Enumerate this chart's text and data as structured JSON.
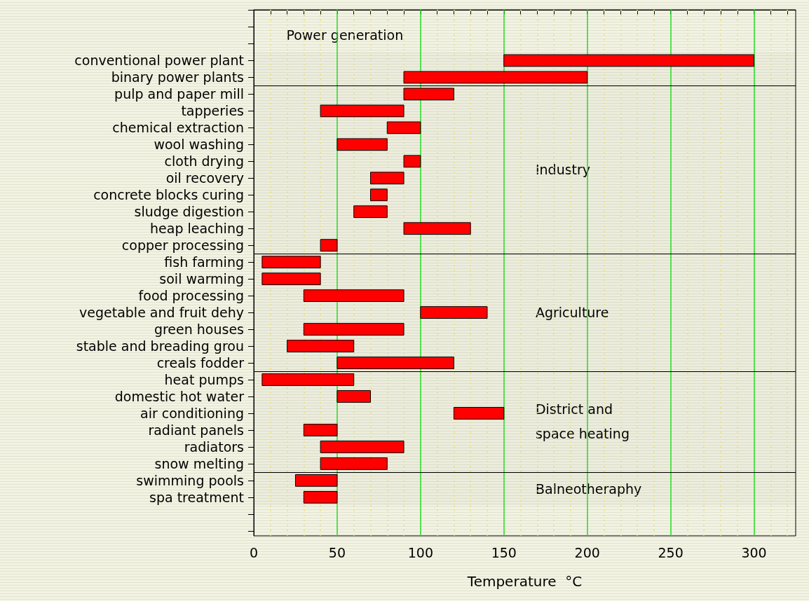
{
  "chart_data": {
    "type": "bar",
    "orientation": "horizontal",
    "xlabel": "Temperature  °C",
    "categories": [
      null,
      null,
      null,
      "conventional power plant",
      "binary power plants",
      "pulp and paper mill",
      "tapperies",
      "chemical extraction",
      "wool washing",
      "cloth drying",
      "oil recovery",
      "concrete blocks curing",
      "sludge digestion",
      "heap leaching",
      "copper processing",
      "fish farming",
      "soil warming",
      "food processing",
      "vegetable and fruit dehy",
      "green houses",
      "stable and breading grou",
      "creals fodder",
      "heat pumps",
      "domestic hot water",
      "air conditioning",
      "radiant panels",
      "radiators",
      "snow melting",
      "swimming pools",
      "spa treatment",
      null,
      null
    ],
    "base": [
      null,
      null,
      null,
      150,
      90,
      90,
      40,
      80,
      50,
      90,
      70,
      70,
      60,
      90,
      40,
      5,
      5,
      30,
      100,
      30,
      20,
      50,
      5,
      50,
      120,
      30,
      40,
      40,
      25,
      30,
      null,
      null
    ],
    "values": [
      null,
      null,
      null,
      150,
      110,
      30,
      50,
      20,
      30,
      10,
      20,
      10,
      20,
      40,
      10,
      35,
      35,
      60,
      40,
      60,
      40,
      70,
      55,
      20,
      30,
      20,
      50,
      40,
      25,
      20,
      null,
      null
    ],
    "color": "#ff0000",
    "xlim": [
      0,
      325
    ],
    "xticks": [
      0,
      {
        "value": 10,
        "label": null
      },
      {
        "value": 20,
        "label": null
      },
      {
        "value": 30,
        "label": null
      },
      {
        "value": 40,
        "label": null
      },
      50,
      {
        "value": 60,
        "label": null
      },
      {
        "value": 70,
        "label": null
      },
      {
        "value": 80,
        "label": null
      },
      {
        "value": 90,
        "label": null
      },
      100,
      {
        "value": 110,
        "label": null
      },
      {
        "value": 120,
        "label": null
      },
      {
        "value": 130,
        "label": null
      },
      {
        "value": 140,
        "label": null
      },
      150,
      {
        "value": 160,
        "label": null
      },
      {
        "value": 170,
        "label": null
      },
      {
        "value": 180,
        "label": null
      },
      {
        "value": 190,
        "label": null
      },
      200,
      {
        "value": 210,
        "label": null
      },
      {
        "value": 220,
        "label": null
      },
      {
        "value": 230,
        "label": null
      },
      {
        "value": 240,
        "label": null
      },
      250,
      {
        "value": 260,
        "label": null
      },
      {
        "value": 270,
        "label": null
      },
      {
        "value": 280,
        "label": null
      },
      {
        "value": 290,
        "label": null
      },
      300,
      {
        "value": 310,
        "label": null
      },
      {
        "value": 320,
        "label": null
      }
    ],
    "grid": "x",
    "bands": [
      {
        "axis": "y",
        "from": "conventional power plant",
        "to": "binary power plants",
        "label": "Power generation"
      },
      {
        "axis": "y",
        "from": "pulp and paper mill",
        "to": "copper processing",
        "label": "Industry"
      },
      {
        "axis": "y",
        "from": "fish farming",
        "to": "creals fodder",
        "label": "Agriculture"
      },
      {
        "axis": "y",
        "from": "heat pumps",
        "to": "snow melting",
        "label": "District and\nspace heating"
      },
      {
        "axis": "y",
        "from": "swimming pools",
        "to": "spa treatment",
        "label": "Balneotheraphy"
      }
    ]
  }
}
